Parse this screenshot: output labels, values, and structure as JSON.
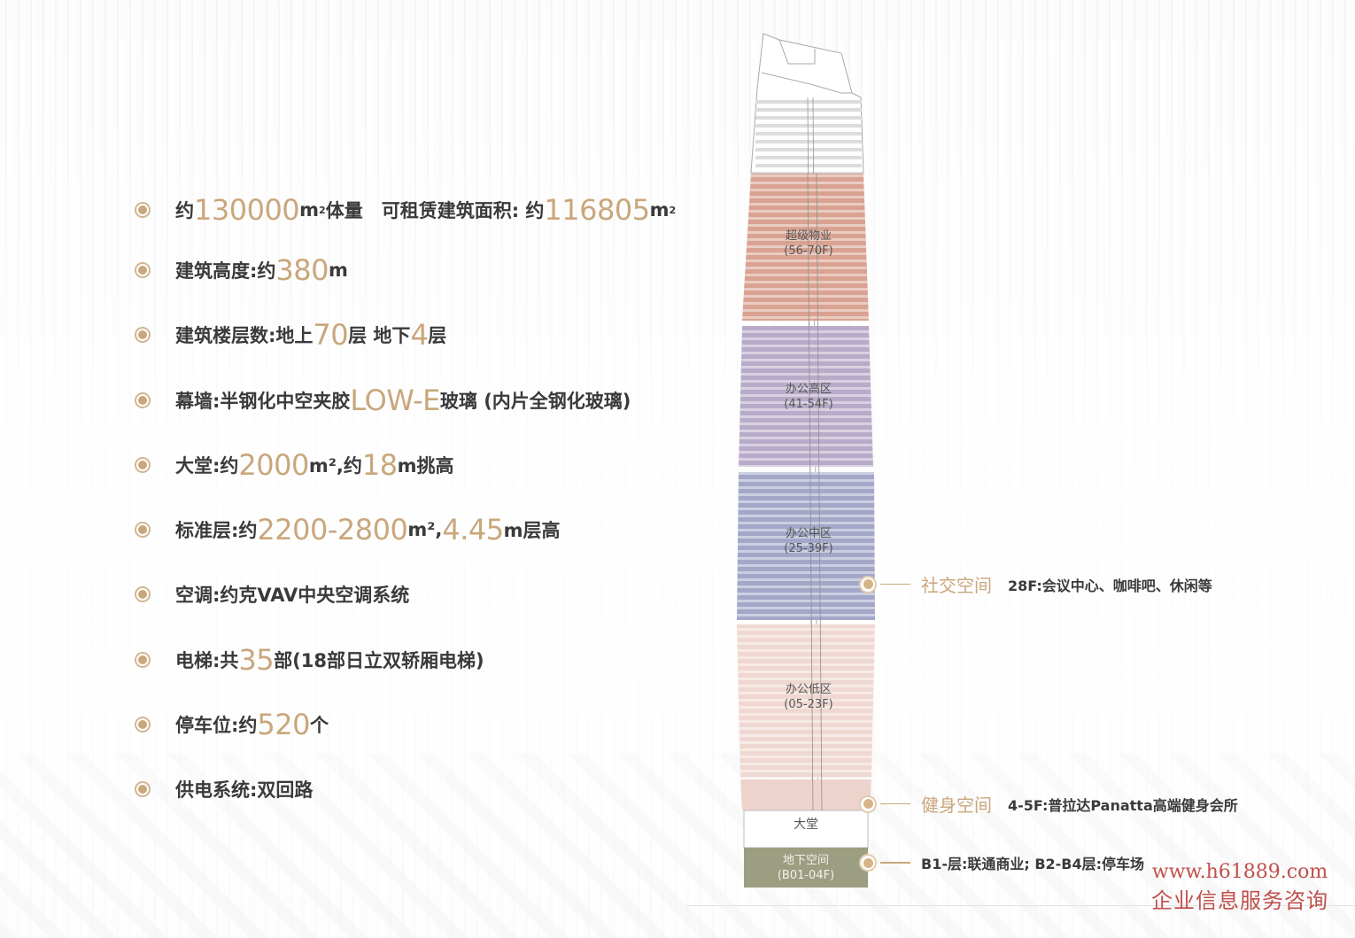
{
  "features": [
    {
      "segments": [
        {
          "t": "约"
        },
        {
          "t": "130000",
          "hl": true
        },
        {
          "t": "m"
        },
        {
          "t": "2",
          "sup": true
        },
        {
          "t": " 体量　可租赁建筑面积: 约"
        },
        {
          "t": "116805",
          "hl": true
        },
        {
          "t": "m"
        },
        {
          "t": "2",
          "sup": true
        }
      ]
    },
    {
      "segments": [
        {
          "t": "建筑高度:约"
        },
        {
          "t": "380",
          "hl": true
        },
        {
          "t": "m"
        }
      ]
    },
    {
      "segments": [
        {
          "t": "建筑楼层数:地上"
        },
        {
          "t": "70",
          "hl": true
        },
        {
          "t": "层 地下"
        },
        {
          "t": "4",
          "hl": true
        },
        {
          "t": "层"
        }
      ]
    },
    {
      "segments": [
        {
          "t": "幕墙:半钢化中空夹胶"
        },
        {
          "t": "LOW-E",
          "hl": true
        },
        {
          "t": "玻璃 (内片全钢化玻璃)"
        }
      ]
    },
    {
      "segments": [
        {
          "t": "大堂:约"
        },
        {
          "t": "2000",
          "hl": true
        },
        {
          "t": "m²,约"
        },
        {
          "t": "18",
          "hl": true
        },
        {
          "t": "m挑高"
        }
      ]
    },
    {
      "segments": [
        {
          "t": "标准层:约"
        },
        {
          "t": "2200-2800",
          "hl": true
        },
        {
          "t": "m²,"
        },
        {
          "t": "4.45",
          "hl": true
        },
        {
          "t": "m层高"
        }
      ]
    },
    {
      "segments": [
        {
          "t": "空调:约克VAV中央空调系统"
        }
      ]
    },
    {
      "segments": [
        {
          "t": "电梯:共"
        },
        {
          "t": "35",
          "hl": true
        },
        {
          "t": "部(18部日立双轿厢电梯)"
        }
      ]
    },
    {
      "segments": [
        {
          "t": "停车位:约"
        },
        {
          "t": "520",
          "hl": true
        },
        {
          "t": "个"
        }
      ]
    },
    {
      "segments": [
        {
          "t": "供电系统:双回路"
        }
      ]
    }
  ],
  "tower": {
    "zones": [
      {
        "name": "超级物业",
        "floors": "(56-70F)",
        "color": "#d9a291"
      },
      {
        "name": "办公高区",
        "floors": "(41-54F)",
        "color": "#b8abc9"
      },
      {
        "name": "办公中区",
        "floors": "(25-39F)",
        "color": "#a3a7c8"
      },
      {
        "name": "办公低区",
        "floors": "(05-23F)",
        "color": "#f0d8d2"
      },
      {
        "name": "大堂",
        "floors": ""
      },
      {
        "name": "地下空间",
        "floors": "(B01-04F)",
        "color": "#9c9e82"
      }
    ]
  },
  "callouts": [
    {
      "label": "社交空间",
      "desc": "28F:会议中心、咖啡吧、休闲等"
    },
    {
      "label": "健身空间",
      "desc": "4-5F:普拉达Panatta高端健身会所"
    },
    {
      "label": "",
      "desc": "B1-层:联通商业; B2-B4层:停车场"
    }
  ],
  "watermark": {
    "url": "www.h61889.com",
    "text": "企业信息服务咨询"
  },
  "colors": {
    "accent": "#c9a77c",
    "text": "#3a3a3a"
  }
}
